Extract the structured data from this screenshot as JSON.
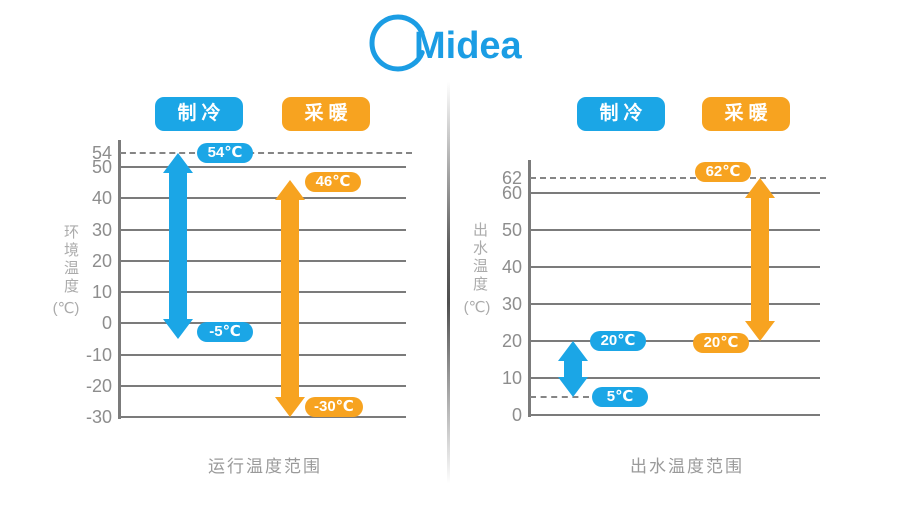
{
  "brand": {
    "wordmark": "Midea",
    "color": "#1B9DE4"
  },
  "colors": {
    "cooling": "#1BA6E6",
    "heating": "#F7A320",
    "grid": "#7b7b7b"
  },
  "chart_data": [
    {
      "type": "bar",
      "subtype": "vertical-range-arrows",
      "title": "运行温度范围",
      "ylabel": "环境温度",
      "ylabel_unit": "(℃)",
      "ylim": [
        -30,
        54
      ],
      "yticks": [
        54,
        50,
        40,
        30,
        20,
        10,
        0,
        -10,
        -20,
        -30
      ],
      "grid": true,
      "legend_position": "top",
      "legend": [
        {
          "label": "制冷",
          "color": "#1BA6E6"
        },
        {
          "label": "采暖",
          "color": "#F7A320"
        }
      ],
      "dashed_levels": [
        {
          "value": 54,
          "extent": "full"
        }
      ],
      "series": [
        {
          "name": "制冷",
          "color": "#1BA6E6",
          "min": -5,
          "max": 54,
          "min_label": "-5℃",
          "max_label": "54℃"
        },
        {
          "name": "采暖",
          "color": "#F7A320",
          "min": -30,
          "max": 46,
          "min_label": "-30℃",
          "max_label": "46℃"
        }
      ]
    },
    {
      "type": "bar",
      "subtype": "vertical-range-arrows",
      "title": "出水温度范围",
      "ylabel": "出水温度",
      "ylabel_unit": "(℃)",
      "ylim": [
        0,
        62
      ],
      "yticks": [
        62,
        60,
        50,
        40,
        30,
        20,
        10,
        0
      ],
      "grid": true,
      "legend_position": "top",
      "legend": [
        {
          "label": "制冷",
          "color": "#1BA6E6"
        },
        {
          "label": "采暖",
          "color": "#F7A320"
        }
      ],
      "dashed_levels": [
        {
          "value": 62,
          "extent": "full"
        },
        {
          "value": 5,
          "extent": "short"
        }
      ],
      "series": [
        {
          "name": "制冷",
          "color": "#1BA6E6",
          "min": 5,
          "max": 20,
          "min_label": "5℃",
          "max_label": "20℃"
        },
        {
          "name": "采暖",
          "color": "#F7A320",
          "min": 20,
          "max": 62,
          "min_label": "20℃",
          "max_label": "62℃"
        }
      ]
    }
  ]
}
